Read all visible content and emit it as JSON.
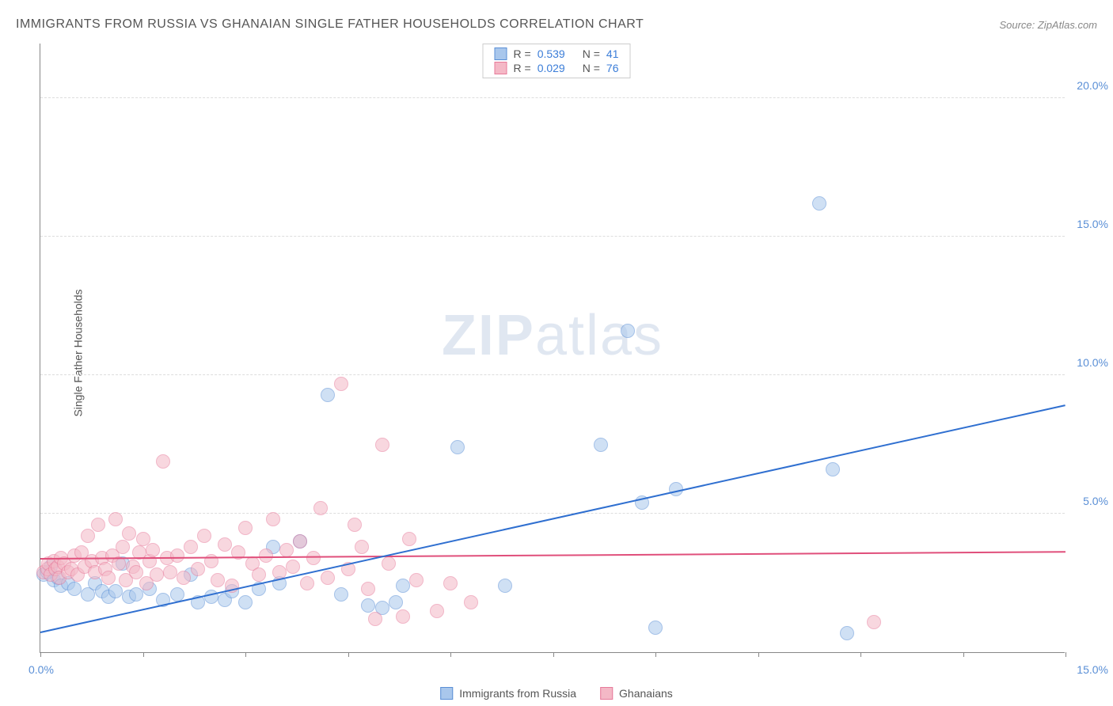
{
  "title": "IMMIGRANTS FROM RUSSIA VS GHANAIAN SINGLE FATHER HOUSEHOLDS CORRELATION CHART",
  "source": "Source: ZipAtlas.com",
  "watermark": {
    "bold": "ZIP",
    "rest": "atlas"
  },
  "y_axis_label": "Single Father Households",
  "chart": {
    "type": "scatter",
    "xlim": [
      0,
      15
    ],
    "ylim": [
      0,
      22
    ],
    "x_ticks": [
      0,
      1.5,
      3,
      4.5,
      6,
      7.5,
      9,
      10.5,
      12,
      13.5,
      15
    ],
    "x_tick_labels": {
      "0": "0.0%",
      "15": "15.0%"
    },
    "y_gridlines": [
      5,
      10,
      15,
      20
    ],
    "y_tick_labels": {
      "5": "5.0%",
      "10": "10.0%",
      "15": "15.0%",
      "20": "20.0%"
    },
    "marker_radius": 9,
    "marker_opacity": 0.55,
    "background_color": "#ffffff",
    "grid_color": "#dddddd"
  },
  "series": [
    {
      "id": "russia",
      "label": "Immigrants from Russia",
      "color_fill": "#a9c7ec",
      "color_stroke": "#5a8fd6",
      "R": "0.539",
      "N": "41",
      "trend": {
        "x1": 0,
        "y1": 0.7,
        "x2": 15,
        "y2": 8.9,
        "color": "#2f6fd0",
        "width": 2
      },
      "points": [
        [
          0.05,
          2.8
        ],
        [
          0.1,
          2.9
        ],
        [
          0.15,
          3.1
        ],
        [
          0.2,
          2.6
        ],
        [
          0.25,
          2.7
        ],
        [
          0.3,
          2.4
        ],
        [
          0.4,
          2.5
        ],
        [
          0.5,
          2.3
        ],
        [
          0.7,
          2.1
        ],
        [
          0.8,
          2.5
        ],
        [
          0.9,
          2.2
        ],
        [
          1.0,
          2.0
        ],
        [
          1.1,
          2.2
        ],
        [
          1.2,
          3.2
        ],
        [
          1.3,
          2.0
        ],
        [
          1.4,
          2.1
        ],
        [
          1.6,
          2.3
        ],
        [
          1.8,
          1.9
        ],
        [
          2.0,
          2.1
        ],
        [
          2.2,
          2.8
        ],
        [
          2.3,
          1.8
        ],
        [
          2.5,
          2.0
        ],
        [
          2.7,
          1.9
        ],
        [
          2.8,
          2.2
        ],
        [
          3.0,
          1.8
        ],
        [
          3.2,
          2.3
        ],
        [
          3.4,
          3.8
        ],
        [
          3.5,
          2.5
        ],
        [
          3.8,
          4.0
        ],
        [
          4.2,
          9.3
        ],
        [
          4.4,
          2.1
        ],
        [
          4.8,
          1.7
        ],
        [
          5.0,
          1.6
        ],
        [
          5.2,
          1.8
        ],
        [
          5.3,
          2.4
        ],
        [
          6.1,
          7.4
        ],
        [
          6.8,
          2.4
        ],
        [
          8.2,
          7.5
        ],
        [
          8.6,
          11.6
        ],
        [
          8.8,
          5.4
        ],
        [
          9.0,
          0.9
        ],
        [
          9.3,
          5.9
        ],
        [
          11.4,
          16.2
        ],
        [
          11.6,
          6.6
        ],
        [
          11.8,
          0.7
        ]
      ]
    },
    {
      "id": "ghana",
      "label": "Ghanaians",
      "color_fill": "#f4b8c6",
      "color_stroke": "#e77a9a",
      "R": "0.029",
      "N": "76",
      "trend": {
        "x1": 0,
        "y1": 3.35,
        "x2": 15,
        "y2": 3.6,
        "color": "#e04f7b",
        "width": 2
      },
      "points": [
        [
          0.05,
          2.9
        ],
        [
          0.1,
          3.0
        ],
        [
          0.12,
          3.2
        ],
        [
          0.15,
          2.8
        ],
        [
          0.2,
          3.3
        ],
        [
          0.22,
          3.0
        ],
        [
          0.25,
          3.1
        ],
        [
          0.28,
          2.7
        ],
        [
          0.3,
          3.4
        ],
        [
          0.35,
          3.2
        ],
        [
          0.4,
          2.9
        ],
        [
          0.45,
          3.0
        ],
        [
          0.5,
          3.5
        ],
        [
          0.55,
          2.8
        ],
        [
          0.6,
          3.6
        ],
        [
          0.65,
          3.1
        ],
        [
          0.7,
          4.2
        ],
        [
          0.75,
          3.3
        ],
        [
          0.8,
          2.9
        ],
        [
          0.85,
          4.6
        ],
        [
          0.9,
          3.4
        ],
        [
          0.95,
          3.0
        ],
        [
          1.0,
          2.7
        ],
        [
          1.05,
          3.5
        ],
        [
          1.1,
          4.8
        ],
        [
          1.15,
          3.2
        ],
        [
          1.2,
          3.8
        ],
        [
          1.25,
          2.6
        ],
        [
          1.3,
          4.3
        ],
        [
          1.35,
          3.1
        ],
        [
          1.4,
          2.9
        ],
        [
          1.45,
          3.6
        ],
        [
          1.5,
          4.1
        ],
        [
          1.55,
          2.5
        ],
        [
          1.6,
          3.3
        ],
        [
          1.65,
          3.7
        ],
        [
          1.7,
          2.8
        ],
        [
          1.8,
          6.9
        ],
        [
          1.85,
          3.4
        ],
        [
          1.9,
          2.9
        ],
        [
          2.0,
          3.5
        ],
        [
          2.1,
          2.7
        ],
        [
          2.2,
          3.8
        ],
        [
          2.3,
          3.0
        ],
        [
          2.4,
          4.2
        ],
        [
          2.5,
          3.3
        ],
        [
          2.6,
          2.6
        ],
        [
          2.7,
          3.9
        ],
        [
          2.8,
          2.4
        ],
        [
          2.9,
          3.6
        ],
        [
          3.0,
          4.5
        ],
        [
          3.1,
          3.2
        ],
        [
          3.2,
          2.8
        ],
        [
          3.3,
          3.5
        ],
        [
          3.4,
          4.8
        ],
        [
          3.5,
          2.9
        ],
        [
          3.6,
          3.7
        ],
        [
          3.7,
          3.1
        ],
        [
          3.8,
          4.0
        ],
        [
          3.9,
          2.5
        ],
        [
          4.0,
          3.4
        ],
        [
          4.1,
          5.2
        ],
        [
          4.2,
          2.7
        ],
        [
          4.4,
          9.7
        ],
        [
          4.5,
          3.0
        ],
        [
          4.6,
          4.6
        ],
        [
          4.7,
          3.8
        ],
        [
          4.8,
          2.3
        ],
        [
          4.9,
          1.2
        ],
        [
          5.0,
          7.5
        ],
        [
          5.1,
          3.2
        ],
        [
          5.3,
          1.3
        ],
        [
          5.4,
          4.1
        ],
        [
          5.5,
          2.6
        ],
        [
          5.8,
          1.5
        ],
        [
          6.0,
          2.5
        ],
        [
          6.3,
          1.8
        ],
        [
          12.2,
          1.1
        ]
      ]
    }
  ],
  "legend_top_labels": {
    "R": "R =",
    "N": "N ="
  }
}
